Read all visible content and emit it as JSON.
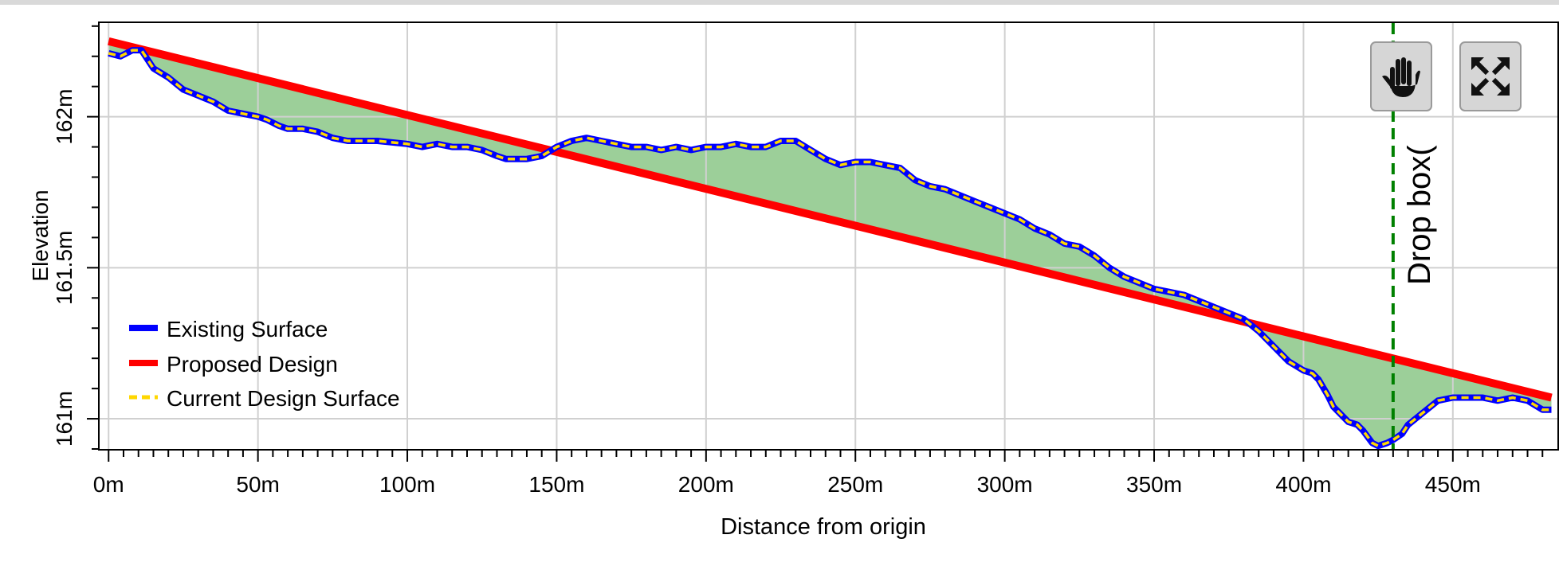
{
  "chart_data": {
    "type": "line",
    "xlabel": "Distance from origin",
    "ylabel": "Elevation",
    "xlim": [
      -3,
      485
    ],
    "ylim": [
      160.9,
      162.31
    ],
    "x_ticks": [
      {
        "value": 0,
        "label": "0m"
      },
      {
        "value": 50,
        "label": "50m"
      },
      {
        "value": 100,
        "label": "100m"
      },
      {
        "value": 150,
        "label": "150m"
      },
      {
        "value": 200,
        "label": "200m"
      },
      {
        "value": 250,
        "label": "250m"
      },
      {
        "value": 300,
        "label": "300m"
      },
      {
        "value": 350,
        "label": "350m"
      },
      {
        "value": 400,
        "label": "400m"
      },
      {
        "value": 450,
        "label": "450m"
      }
    ],
    "y_ticks": [
      {
        "value": 161,
        "label": "161m"
      },
      {
        "value": 161.5,
        "label": "161.5m"
      },
      {
        "value": 162,
        "label": "162m"
      }
    ],
    "grid": true,
    "legend_position": "bottom-left",
    "fill_between_color": "#9ccf99",
    "series": [
      {
        "name": "Existing Surface",
        "color": "#0000ff",
        "style": "solid",
        "x": [
          0,
          4,
          8,
          11,
          13,
          15,
          20,
          25,
          30,
          35,
          40,
          45,
          50,
          53,
          55,
          57,
          60,
          63,
          65,
          70,
          75,
          80,
          90,
          100,
          105,
          110,
          115,
          120,
          125,
          130,
          133,
          135,
          140,
          145,
          150,
          155,
          160,
          165,
          170,
          175,
          180,
          185,
          190,
          195,
          200,
          205,
          210,
          215,
          220,
          225,
          230,
          235,
          240,
          245,
          250,
          255,
          260,
          265,
          270,
          275,
          280,
          285,
          290,
          295,
          300,
          305,
          310,
          315,
          320,
          325,
          330,
          335,
          340,
          345,
          350,
          355,
          360,
          365,
          370,
          375,
          380,
          385,
          390,
          395,
          400,
          403,
          405,
          408,
          410,
          413,
          415,
          418,
          420,
          423,
          425,
          428,
          430,
          433,
          435,
          440,
          445,
          450,
          455,
          460,
          465,
          470,
          475,
          480,
          483
        ],
        "y": [
          162.21,
          162.2,
          162.22,
          162.22,
          162.19,
          162.16,
          162.13,
          162.09,
          162.07,
          162.05,
          162.02,
          162.01,
          162.0,
          161.99,
          161.98,
          161.97,
          161.96,
          161.96,
          161.96,
          161.95,
          161.93,
          161.92,
          161.92,
          161.91,
          161.9,
          161.91,
          161.9,
          161.9,
          161.89,
          161.87,
          161.86,
          161.86,
          161.86,
          161.87,
          161.9,
          161.92,
          161.93,
          161.92,
          161.91,
          161.9,
          161.9,
          161.89,
          161.9,
          161.89,
          161.9,
          161.9,
          161.91,
          161.9,
          161.9,
          161.92,
          161.92,
          161.89,
          161.86,
          161.84,
          161.85,
          161.85,
          161.84,
          161.83,
          161.79,
          161.77,
          161.76,
          161.74,
          161.72,
          161.7,
          161.68,
          161.66,
          161.63,
          161.61,
          161.58,
          161.57,
          161.54,
          161.5,
          161.47,
          161.45,
          161.43,
          161.42,
          161.41,
          161.39,
          161.37,
          161.35,
          161.33,
          161.29,
          161.24,
          161.19,
          161.16,
          161.15,
          161.13,
          161.08,
          161.04,
          161.01,
          160.99,
          160.98,
          160.96,
          160.92,
          160.91,
          160.92,
          160.93,
          160.95,
          160.98,
          161.02,
          161.06,
          161.07,
          161.07,
          161.07,
          161.06,
          161.07,
          161.06,
          161.03,
          161.03
        ]
      },
      {
        "name": "Proposed Design",
        "color": "#ff0000",
        "style": "solid",
        "x": [
          0,
          483
        ],
        "y": [
          162.25,
          161.07
        ]
      },
      {
        "name": "Current Design Surface",
        "color": "#ffd700",
        "style": "dashed",
        "same_as": "Existing Surface"
      }
    ],
    "annotations": [
      {
        "type": "vertical-line",
        "x": 430,
        "color": "#008000",
        "style": "dashed",
        "label": "Drop box("
      }
    ]
  },
  "toolbar": {
    "hand_icon": "hand-pan-icon",
    "expand_icon": "expand-arrows-icon"
  }
}
